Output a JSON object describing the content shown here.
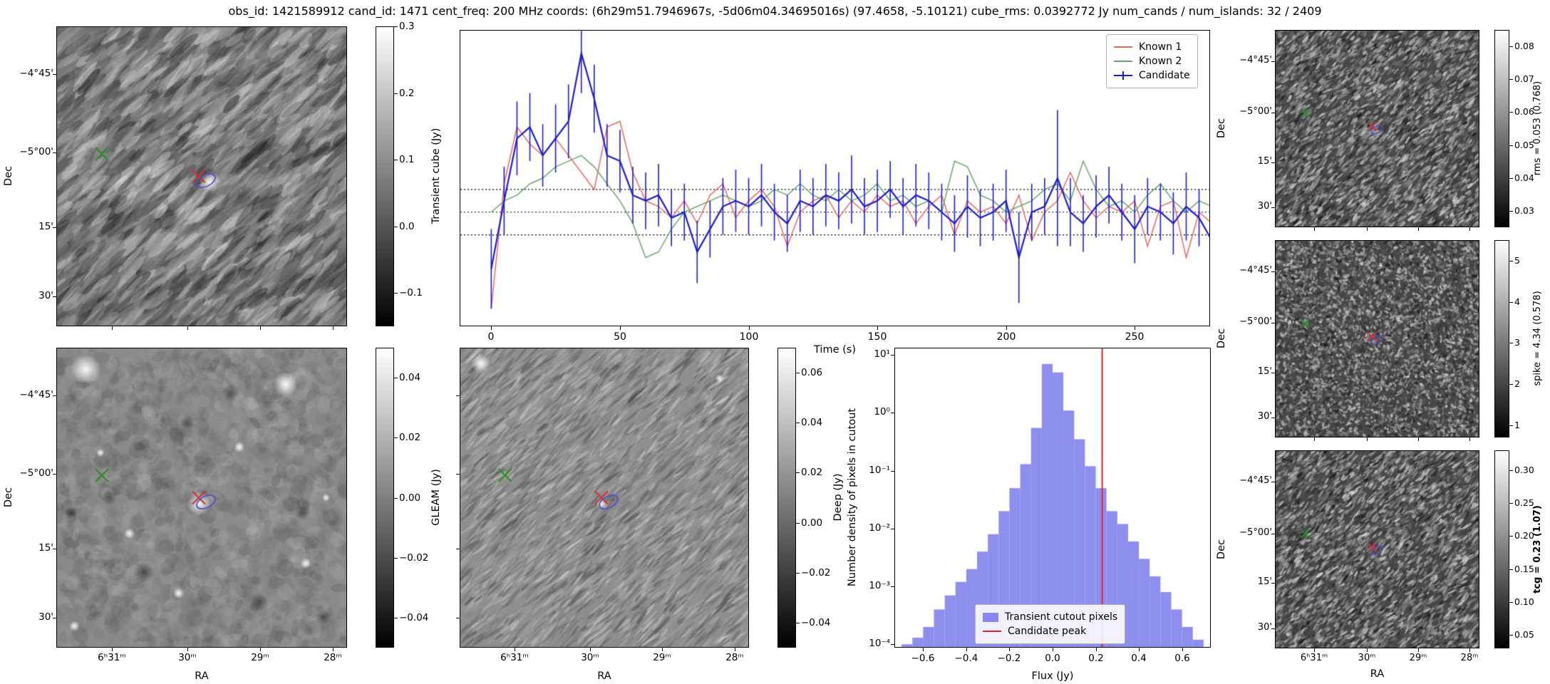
{
  "figure": {
    "title": "obs_id: 1421589912 cand_id: 1471 cent_freq: 200 MHz coords: (6h29m51.7946967s, -5d06m04.34695016s) (97.4658, -5.10121) cube_rms: 0.0392772 Jy num_cands / num_islands: 32 / 2409"
  },
  "axes": {
    "dec_label": "Dec",
    "ra_label": "RA",
    "dec_ticks": {
      "labels": [
        "−4°45'",
        "−5°00'",
        "15'",
        "30'"
      ],
      "fracs": [
        0.16,
        0.42,
        0.67,
        0.9
      ]
    },
    "ra_ticks": {
      "labels": [
        "6ʰ31ᵐ",
        "30ᵐ",
        "29ᵐ",
        "28ᵐ"
      ],
      "fracs": [
        0.19,
        0.45,
        0.7,
        0.95
      ]
    }
  },
  "marker_style": {
    "known_color": "#2e8b2e",
    "candidate_color": "#cc3333",
    "contour_color": "#5050c8"
  },
  "image_panels": {
    "transient_cube": {
      "name": "Transient cube cutout",
      "texture": "streaks-coarse",
      "colorbar": {
        "label": "Transient cube (Jy)",
        "vmin": -0.15,
        "vmax": 0.3,
        "ticks": [
          0.3,
          0.2,
          0.1,
          0.0,
          -0.1
        ],
        "tick_labels": [
          "0.3",
          "0.2",
          "0.1",
          "0.0",
          "−0.1"
        ]
      },
      "markers": {
        "known": [
          0.155,
          0.425
        ],
        "candidate": [
          0.49,
          0.5
        ]
      },
      "sources": [
        [
          0.53,
          0.52,
          8
        ]
      ]
    },
    "gleam": {
      "name": "GLEAM cutout",
      "texture": "blobs",
      "colorbar": {
        "label": "GLEAM (Jy)",
        "vmin": -0.05,
        "vmax": 0.05,
        "ticks": [
          0.04,
          0.02,
          0.0,
          -0.02,
          -0.04
        ],
        "tick_labels": [
          "0.04",
          "0.02",
          "0.00",
          "−0.02",
          "−0.04"
        ]
      },
      "markers": {
        "known": [
          0.155,
          0.425
        ],
        "candidate": [
          0.49,
          0.5
        ]
      },
      "sources": [
        [
          0.1,
          0.07,
          11
        ],
        [
          0.79,
          0.12,
          9
        ],
        [
          0.49,
          0.52,
          9
        ],
        [
          0.63,
          0.33,
          4
        ],
        [
          0.25,
          0.62,
          4
        ],
        [
          0.86,
          0.72,
          4
        ],
        [
          0.42,
          0.82,
          4
        ],
        [
          0.15,
          0.35,
          3
        ],
        [
          0.93,
          0.5,
          3
        ],
        [
          0.06,
          0.93,
          4
        ]
      ],
      "dark_spots": [
        [
          0.6,
          0.15,
          7
        ],
        [
          0.3,
          0.75,
          8
        ],
        [
          0.85,
          0.55,
          6
        ],
        [
          0.18,
          0.5,
          6
        ],
        [
          0.7,
          0.85,
          7
        ],
        [
          0.45,
          0.25,
          6
        ],
        [
          0.92,
          0.9,
          6
        ],
        [
          0.05,
          0.55,
          5
        ]
      ]
    },
    "deep": {
      "name": "Deep image cutout",
      "texture": "streaks-fine",
      "colorbar": {
        "label": "Deep (Jy)",
        "vmin": -0.05,
        "vmax": 0.07,
        "ticks": [
          0.06,
          0.04,
          0.02,
          0.0,
          -0.02,
          -0.04
        ],
        "tick_labels": [
          "0.06",
          "0.04",
          "0.02",
          "0.00",
          "−0.02",
          "−0.04"
        ]
      },
      "markers": {
        "known": [
          0.155,
          0.425
        ],
        "candidate": [
          0.49,
          0.5
        ]
      },
      "sources": [
        [
          0.07,
          0.05,
          7
        ],
        [
          0.49,
          0.52,
          4
        ],
        [
          0.9,
          0.1,
          3
        ]
      ]
    },
    "rms": {
      "name": "rms map",
      "texture": "speckle-streak",
      "colorbar": {
        "label": "rms = 0.053 (0.768)",
        "vmin": 0.025,
        "vmax": 0.085,
        "ticks": [
          0.08,
          0.07,
          0.06,
          0.05,
          0.04,
          0.03
        ],
        "tick_labels": [
          "0.08",
          "0.07",
          "0.06",
          "0.05",
          "0.04",
          "0.03"
        ]
      },
      "markers": {
        "known": [
          0.145,
          0.42
        ],
        "candidate": [
          0.475,
          0.49
        ]
      }
    },
    "spike": {
      "name": "spike map",
      "texture": "speckle",
      "colorbar": {
        "label": "spike = 4.34 (0.578)",
        "vmin": 0.7,
        "vmax": 5.5,
        "ticks": [
          5,
          4,
          3,
          2,
          1
        ],
        "tick_labels": [
          "5",
          "4",
          "3",
          "2",
          "1"
        ]
      },
      "markers": {
        "known": [
          0.145,
          0.42
        ],
        "candidate": [
          0.475,
          0.49
        ]
      }
    },
    "tcg": {
      "name": "tcg map",
      "texture": "speckle-streak",
      "colorbar": {
        "label": "tcg = 0.23 (1.07)",
        "bold": true,
        "vmin": 0.03,
        "vmax": 0.33,
        "ticks": [
          0.3,
          0.25,
          0.2,
          0.15,
          0.1,
          0.05
        ],
        "tick_labels": [
          "0.30",
          "0.25",
          "0.20",
          "0.15",
          "0.10",
          "0.05"
        ]
      },
      "markers": {
        "known": [
          0.145,
          0.42
        ],
        "candidate": [
          0.475,
          0.49
        ]
      }
    }
  },
  "chart_data": [
    {
      "id": "lightcurve",
      "type": "line",
      "title": "",
      "xlabel": "Time (s)",
      "ylabel": "",
      "xlim": [
        -12,
        279
      ],
      "ylim": [
        -0.2,
        0.32
      ],
      "x_ticks": [
        0,
        50,
        100,
        150,
        200,
        250
      ],
      "x_tick_labels": [
        "0",
        "50",
        "100",
        "150",
        "200",
        "250"
      ],
      "threshold_lines": [
        0.04,
        0.0,
        -0.04
      ],
      "legend_position": "upper right",
      "x": [
        0,
        5,
        10,
        15,
        20,
        25,
        30,
        35,
        40,
        45,
        50,
        55,
        60,
        65,
        70,
        75,
        80,
        85,
        90,
        95,
        100,
        105,
        110,
        115,
        120,
        125,
        130,
        135,
        140,
        145,
        150,
        155,
        160,
        165,
        170,
        175,
        180,
        185,
        190,
        195,
        200,
        205,
        210,
        215,
        220,
        225,
        230,
        235,
        240,
        245,
        250,
        255,
        260,
        265,
        270,
        275,
        280
      ],
      "series": [
        {
          "name": "Known 1",
          "color": "#e8695c",
          "values": [
            -0.17,
            0.05,
            0.15,
            0.12,
            0.1,
            0.13,
            0.1,
            0.07,
            0.04,
            0.15,
            0.16,
            0.07,
            0.02,
            0.01,
            -0.01,
            0.02,
            -0.02,
            0.03,
            0.05,
            -0.01,
            0.02,
            0.04,
            0.01,
            -0.06,
            0.0,
            0.02,
            0.03,
            -0.01,
            0.02,
            0.0,
            0.03,
            0.01,
            0.02,
            -0.02,
            0.01,
            0.03,
            -0.04,
            0.02,
            0.0,
            0.01,
            -0.02,
            0.03,
            -0.05,
            0.0,
            0.02,
            0.07,
            0.02,
            -0.01,
            0.01,
            0.0,
            0.02,
            -0.06,
            0.01,
            0.02,
            -0.08,
            0.0,
            -0.02
          ]
        },
        {
          "name": "Known 2",
          "color": "#69a869",
          "values": [
            0.0,
            0.02,
            0.03,
            0.05,
            0.06,
            0.08,
            0.09,
            0.1,
            0.08,
            0.05,
            0.02,
            -0.02,
            -0.08,
            -0.07,
            -0.03,
            0.0,
            0.01,
            0.02,
            0.03,
            0.02,
            0.01,
            0.02,
            0.04,
            0.03,
            0.05,
            0.03,
            0.02,
            0.04,
            0.02,
            0.03,
            0.05,
            0.02,
            0.03,
            0.01,
            0.02,
            0.0,
            0.09,
            0.08,
            0.03,
            0.02,
            0.0,
            0.01,
            0.02,
            0.04,
            0.05,
            0.02,
            0.09,
            0.04,
            0.01,
            0.02,
            0.0,
            0.03,
            0.05,
            0.02,
            0.0,
            0.02,
            0.01
          ]
        },
        {
          "name": "Candidate",
          "color": "#1c1ccf",
          "values": [
            -0.1,
            0.02,
            0.13,
            0.15,
            0.1,
            0.13,
            0.16,
            0.28,
            0.2,
            0.1,
            0.09,
            0.03,
            0.02,
            0.03,
            -0.01,
            0.0,
            -0.07,
            -0.03,
            0.01,
            0.02,
            0.01,
            0.03,
            0.0,
            -0.02,
            0.02,
            0.01,
            0.03,
            0.02,
            0.04,
            0.01,
            0.02,
            0.04,
            0.01,
            0.03,
            0.02,
            0.0,
            -0.02,
            0.01,
            -0.01,
            0.0,
            0.02,
            -0.08,
            0.0,
            0.01,
            0.06,
            0.0,
            -0.02,
            0.01,
            0.03,
            0.0,
            -0.03,
            0.01,
            0.0,
            -0.02,
            0.01,
            -0.01,
            -0.05
          ],
          "errors": [
            0.07,
            0.06,
            0.065,
            0.06,
            0.055,
            0.06,
            0.065,
            0.07,
            0.06,
            0.055,
            0.055,
            0.05,
            0.05,
            0.055,
            0.05,
            0.05,
            0.055,
            0.05,
            0.05,
            0.055,
            0.05,
            0.055,
            0.05,
            0.05,
            0.055,
            0.05,
            0.055,
            0.05,
            0.06,
            0.05,
            0.055,
            0.05,
            0.05,
            0.055,
            0.05,
            0.05,
            0.05,
            0.055,
            0.05,
            0.05,
            0.055,
            0.08,
            0.05,
            0.05,
            0.12,
            0.06,
            0.05,
            0.055,
            0.05,
            0.05,
            0.06,
            0.05,
            0.05,
            0.055,
            0.06,
            0.05,
            0.07
          ]
        }
      ]
    },
    {
      "id": "histogram",
      "type": "bar",
      "xlabel": "Flux (Jy)",
      "ylabel": "Number density of pixels in cutout",
      "bar_color": "#6e6eeb",
      "bar_alpha": 0.78,
      "candidate_peak": 0.23,
      "candidate_line_color": "#d62728",
      "bin_width": 0.05,
      "xlim": [
        -0.73,
        0.73
      ],
      "ylog_min": 9e-05,
      "ylog_max": 13,
      "x_ticks": [
        -0.6,
        -0.4,
        -0.2,
        0.0,
        0.2,
        0.4,
        0.6
      ],
      "x_tick_labels": [
        "−0.6",
        "−0.4",
        "−0.2",
        "0.0",
        "0.2",
        "0.4",
        "0.6"
      ],
      "y_ticks": [
        {
          "label": "10¹",
          "value": 10
        },
        {
          "label": "10⁰",
          "value": 1
        },
        {
          "label": "10⁻¹",
          "value": 0.1
        },
        {
          "label": "10⁻²",
          "value": 0.01
        },
        {
          "label": "10⁻³",
          "value": 0.001
        },
        {
          "label": "10⁻⁴",
          "value": 0.0001
        }
      ],
      "bin_centers": [
        -0.675,
        -0.625,
        -0.575,
        -0.525,
        -0.475,
        -0.425,
        -0.375,
        -0.325,
        -0.275,
        -0.225,
        -0.175,
        -0.125,
        -0.075,
        -0.025,
        0.025,
        0.075,
        0.125,
        0.175,
        0.225,
        0.275,
        0.325,
        0.375,
        0.425,
        0.475,
        0.525,
        0.575,
        0.625,
        0.675
      ],
      "densities": [
        0.0001,
        0.00013,
        0.0002,
        0.0004,
        0.0007,
        0.0012,
        0.002,
        0.004,
        0.008,
        0.02,
        0.05,
        0.13,
        0.55,
        7.0,
        5.0,
        1.1,
        0.35,
        0.12,
        0.05,
        0.02,
        0.012,
        0.006,
        0.003,
        0.0015,
        0.0008,
        0.0004,
        0.0002,
        0.00012
      ],
      "legend": [
        "Transient cutout pixels",
        "Candidate peak"
      ]
    }
  ]
}
